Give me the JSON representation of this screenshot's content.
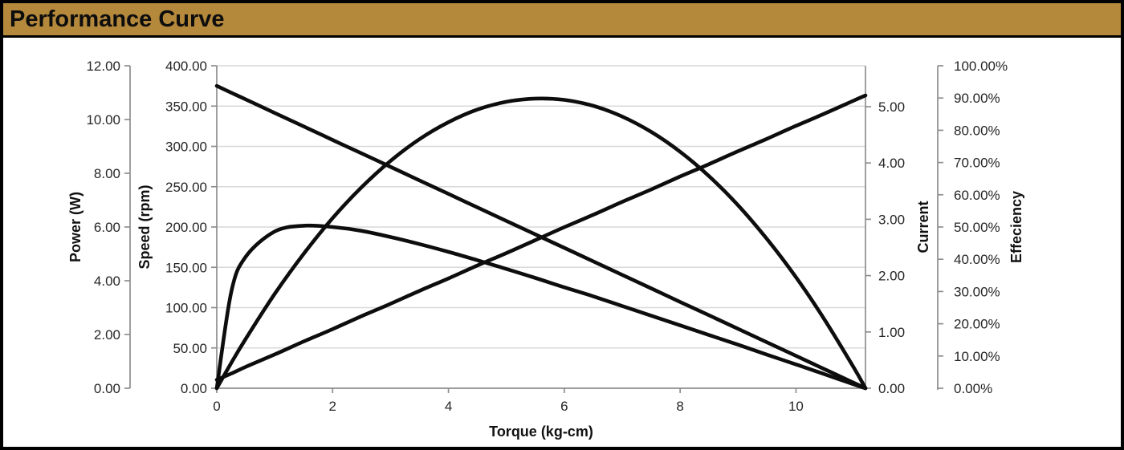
{
  "window": {
    "title": "Performance Curve"
  },
  "chart_data": {
    "type": "line",
    "title": "Performance Curve",
    "x_axis": {
      "title": "Torque (kg-cm)",
      "min": 0,
      "max": 11.2,
      "tick_values": [
        0,
        2,
        4,
        6,
        8,
        10
      ],
      "tick_labels": [
        "0",
        "2",
        "4",
        "6",
        "8",
        "10"
      ]
    },
    "y_axes": [
      {
        "id": "power",
        "title": "Power (W)",
        "side": "left-outer",
        "min": 0,
        "max": 12,
        "tick_values": [
          0,
          2,
          4,
          6,
          8,
          10,
          12
        ],
        "tick_labels": [
          "0.00",
          "2.00",
          "4.00",
          "6.00",
          "8.00",
          "10.00",
          "12.00"
        ]
      },
      {
        "id": "speed",
        "title": "Speed (rpm)",
        "side": "left",
        "min": 0,
        "max": 400,
        "tick_values": [
          0,
          50,
          100,
          150,
          200,
          250,
          300,
          350,
          400
        ],
        "tick_labels": [
          "0.00",
          "50.00",
          "100.00",
          "150.00",
          "200.00",
          "250.00",
          "300.00",
          "350.00",
          "400.00"
        ]
      },
      {
        "id": "current",
        "title": "Current",
        "side": "right",
        "min": 0,
        "max": 5,
        "tick_values": [
          0,
          1,
          2,
          3,
          4,
          5
        ],
        "tick_labels": [
          "0.00",
          "1.00",
          "2.00",
          "3.00",
          "4.00",
          "5.00"
        ]
      },
      {
        "id": "efficiency",
        "title": "Effeciency",
        "side": "right-outer",
        "min": 0,
        "max": 100,
        "tick_values": [
          0,
          10,
          20,
          30,
          40,
          50,
          60,
          70,
          80,
          90,
          100
        ],
        "tick_labels": [
          "0.00%",
          "10.00%",
          "20.00%",
          "30.00%",
          "40.00%",
          "50.00%",
          "60.00%",
          "70.00%",
          "80.00%",
          "90.00%",
          "100.00%"
        ]
      }
    ],
    "x": [
      0,
      0.25,
      0.5,
      1,
      1.5,
      2,
      2.5,
      3,
      3.5,
      4,
      4.5,
      5,
      5.5,
      6,
      6.5,
      7,
      7.5,
      8,
      8.5,
      9,
      9.5,
      10,
      10.5,
      11,
      11.2
    ],
    "series": [
      {
        "name": "Speed (rpm)",
        "axis": "speed",
        "values": [
          375,
          366.6,
          358.3,
          341.5,
          324.8,
          308.0,
          291.3,
          274.6,
          257.8,
          241.1,
          224.3,
          207.6,
          190.8,
          174.1,
          157.4,
          140.6,
          123.9,
          107.1,
          90.4,
          73.7,
          56.9,
          40.2,
          23.4,
          6.7,
          0
        ]
      },
      {
        "name": "Power (W)",
        "axis": "power",
        "values": [
          0,
          0.94,
          1.84,
          3.51,
          5.0,
          6.33,
          7.48,
          8.46,
          9.27,
          9.9,
          10.37,
          10.66,
          10.78,
          10.73,
          10.51,
          10.11,
          9.54,
          8.8,
          7.89,
          6.81,
          5.55,
          4.13,
          2.53,
          0.76,
          0
        ]
      },
      {
        "name": "Current",
        "axis": "current",
        "values": [
          0.15,
          0.26,
          0.38,
          0.6,
          0.83,
          1.05,
          1.28,
          1.5,
          1.73,
          1.95,
          2.18,
          2.4,
          2.63,
          2.86,
          3.08,
          3.31,
          3.53,
          3.76,
          3.98,
          4.21,
          4.43,
          4.66,
          4.88,
          5.11,
          5.2
        ]
      },
      {
        "name": "Effeciency",
        "axis": "efficiency",
        "values": [
          0,
          29.8,
          40.8,
          48.6,
          50.4,
          50.0,
          48.8,
          46.9,
          44.7,
          42.3,
          39.7,
          37.0,
          34.2,
          31.3,
          28.5,
          25.5,
          22.5,
          19.5,
          16.5,
          13.5,
          10.4,
          7.4,
          4.3,
          1.2,
          0
        ]
      }
    ],
    "layout": {
      "grid": "horizontal-only",
      "legend": "none"
    },
    "colors": {
      "line": "#0d0d0d",
      "grid": "#d9d9d9",
      "axis": "#8e8e8e",
      "tick_text": "#262626",
      "title_bar_bg": "#b5893c",
      "border": "#000000",
      "background": "#ffffff"
    }
  }
}
